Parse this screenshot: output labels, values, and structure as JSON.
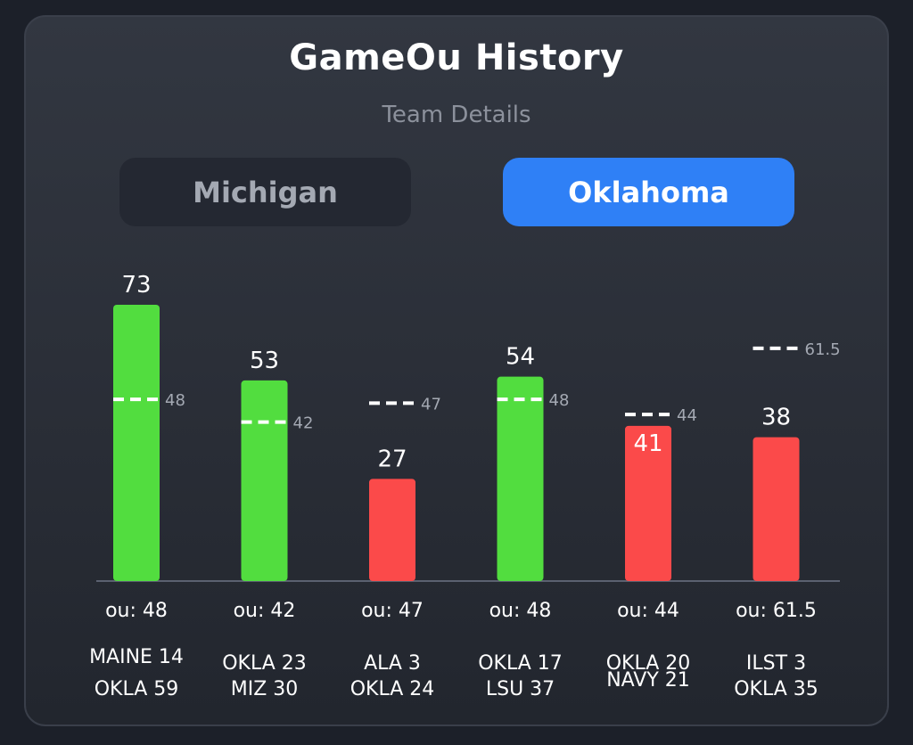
{
  "header": {
    "title": "GameOu History",
    "subtitle": "Team Details"
  },
  "tabs": [
    {
      "label": "Michigan",
      "active": false
    },
    {
      "label": "Oklahoma",
      "active": true
    }
  ],
  "colors": {
    "over": "#52dd3f",
    "under": "#fb4a4a",
    "active_tab": "#2f80f6",
    "line": "#ffffff"
  },
  "chart_data": {
    "type": "bar",
    "categories": [
      "MAINE 14 / OKLA 59",
      "OKLA 23 / MIZ 30",
      "ALA 3 / OKLA 24",
      "OKLA 17 / LSU 37",
      "OKLA 20 / NAVY 21",
      "ILST 3 / OKLA 35"
    ],
    "values": [
      73,
      53,
      27,
      54,
      41,
      38
    ],
    "ou_lines": [
      48,
      42,
      47,
      48,
      44,
      61.5
    ],
    "ou_text": [
      "ou: 48",
      "ou: 42",
      "ou: 47",
      "ou: 48",
      "ou: 44",
      "ou: 61.5"
    ],
    "ou_line_text": [
      "48",
      "42",
      "47",
      "48",
      "44",
      "61.5"
    ],
    "bar_colors": [
      "over",
      "over",
      "under",
      "over",
      "under",
      "under"
    ],
    "score_lines": [
      [
        "MAINE 14",
        "OKLA 59"
      ],
      [
        "OKLA 23",
        "MIZ 30"
      ],
      [
        "ALA 3",
        "OKLA 24"
      ],
      [
        "OKLA 17",
        "LSU 37"
      ],
      [
        "OKLA 20",
        "NAVY 21"
      ],
      [
        "ILST 3",
        "OKLA 35"
      ]
    ],
    "ylim": [
      0,
      73
    ],
    "grid": false,
    "title": "",
    "xlabel": "",
    "ylabel": ""
  }
}
